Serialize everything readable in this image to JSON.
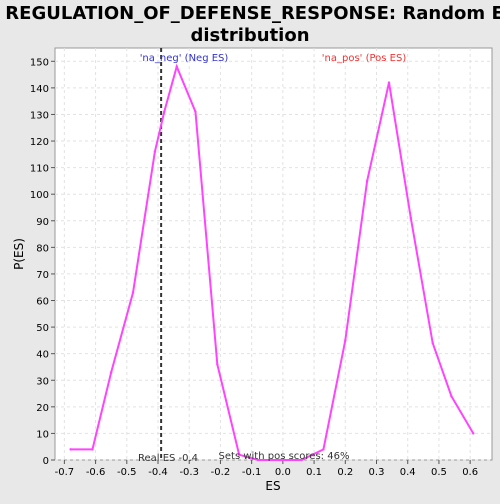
{
  "chart_data": {
    "type": "line",
    "title": "REGULATION_OF_DEFENSE_RESPONSE: Random ES distribution",
    "title_lines": [
      "REGULATION_OF_DEFENSE_RESPONSE: Random ES",
      "distribution"
    ],
    "xlabel": "ES",
    "ylabel": "P(ES)",
    "xlim": [
      -0.73,
      0.67
    ],
    "ylim": [
      0,
      155
    ],
    "xticks": [
      -0.7,
      -0.6,
      -0.5,
      -0.4,
      -0.3,
      -0.2,
      -0.1,
      0.0,
      0.1,
      0.2,
      0.3,
      0.4,
      0.5,
      0.6
    ],
    "xtick_labels": [
      "-0.7",
      "-0.6",
      "-0.5",
      "-0.4",
      "-0.3",
      "-0.2",
      "-0.1",
      "0.0",
      "0.1",
      "0.2",
      "0.3",
      "0.4",
      "0.5",
      "0.6"
    ],
    "yticks": [
      0,
      10,
      20,
      30,
      40,
      50,
      60,
      70,
      80,
      90,
      100,
      110,
      120,
      130,
      140,
      150
    ],
    "grid": true,
    "series": [
      {
        "color": "#ff44ff",
        "x": [
          -0.68,
          -0.61,
          -0.55,
          -0.48,
          -0.41,
          -0.38,
          -0.34,
          -0.28,
          -0.21,
          -0.14,
          -0.08,
          -0.01,
          0.06,
          0.13,
          0.2,
          0.27,
          0.34,
          0.41,
          0.48,
          0.54,
          0.61
        ],
        "y": [
          4,
          4,
          33,
          63,
          116,
          131,
          148,
          131,
          36,
          2,
          0,
          0,
          0,
          4,
          45,
          105,
          142,
          91,
          44,
          24,
          10
        ]
      }
    ],
    "annotations": {
      "neg_label": "'na_neg' (Neg ES)",
      "pos_label": "'na_pos' (Pos ES)",
      "real_es_label": "Real ES -0.4",
      "pos_scores_label": "Sets with pos scores: 46%",
      "real_es_value": -0.39
    },
    "colors": {
      "neg": "#3333cc",
      "pos": "#ee3333",
      "line": "#ff44ff",
      "marker": "#333333"
    }
  }
}
